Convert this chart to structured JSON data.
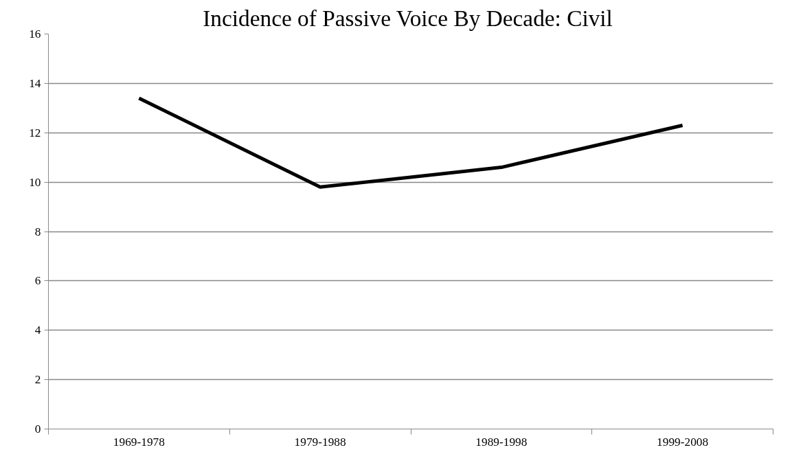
{
  "chart_data": {
    "type": "line",
    "title": "Incidence of Passive Voice By Decade:  Civil",
    "categories": [
      "1969-1978",
      "1979-1988",
      "1989-1998",
      "1999-2008"
    ],
    "series": [
      {
        "color": "#000000",
        "values": [
          13.4,
          9.8,
          10.6,
          12.3
        ]
      }
    ],
    "ylim": [
      0,
      16
    ],
    "yticks": [
      0,
      2,
      4,
      6,
      8,
      10,
      12,
      14,
      16
    ],
    "grid": "y",
    "marker": "none",
    "line_style": "solid"
  }
}
